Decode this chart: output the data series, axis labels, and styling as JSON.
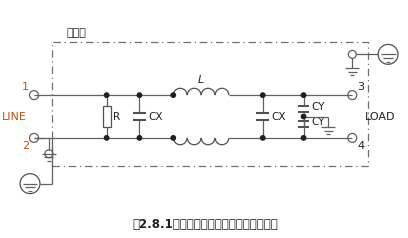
{
  "title": "図2.8.1　単相１段フィルタの回路構成例",
  "case_label": "ケース",
  "line_label": "LINE",
  "load_label": "LOAD",
  "L_label": "L",
  "R_label": "R",
  "CX1_label": "CX",
  "CX2_label": "CX",
  "CY1_label": "CY",
  "CY2_label": "CY",
  "node1": "1",
  "node2": "2",
  "node3": "3",
  "node4": "4",
  "wire_color": "#606060",
  "bg_color": "#ffffff",
  "box_color": "#707070",
  "component_color": "#505050",
  "dot_color": "#202020",
  "text_color": "#202020",
  "label_color_cy": "#2060a0",
  "label_color_line": "#c05010"
}
